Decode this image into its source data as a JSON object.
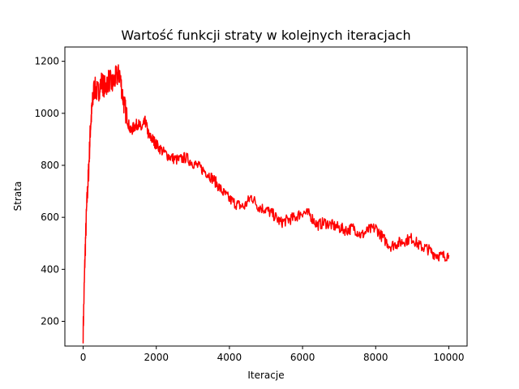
{
  "chart_data": {
    "type": "line",
    "title": "Wartość funkcji straty w kolejnych iteracjach",
    "xlabel": "Iteracje",
    "ylabel": "Strata",
    "xlim": [
      -500,
      10500
    ],
    "ylim": [
      105,
      1255
    ],
    "xticks": [
      0,
      2000,
      4000,
      6000,
      8000,
      10000
    ],
    "yticks": [
      200,
      400,
      600,
      800,
      1000,
      1200
    ],
    "grid": false,
    "legend": "none",
    "series": [
      {
        "color": "#ff0000",
        "x": [
          0,
          50,
          100,
          150,
          200,
          250,
          300,
          400,
          500,
          600,
          700,
          800,
          900,
          1000,
          1100,
          1200,
          1300,
          1400,
          1500,
          1600,
          1700,
          1800,
          1900,
          2000,
          2200,
          2400,
          2600,
          2800,
          3000,
          3200,
          3400,
          3600,
          3800,
          4000,
          4200,
          4400,
          4600,
          4800,
          5000,
          5200,
          5400,
          5600,
          5800,
          6000,
          6200,
          6400,
          6600,
          6800,
          7000,
          7200,
          7400,
          7600,
          7800,
          8000,
          8200,
          8400,
          8600,
          8800,
          9000,
          9200,
          9400,
          9600,
          9800,
          10000
        ],
        "y": [
          160,
          450,
          650,
          780,
          950,
          1030,
          1100,
          1080,
          1120,
          1100,
          1130,
          1110,
          1140,
          1150,
          1050,
          980,
          930,
          950,
          960,
          940,
          970,
          910,
          900,
          880,
          850,
          830,
          820,
          830,
          810,
          790,
          770,
          740,
          700,
          670,
          650,
          640,
          680,
          640,
          630,
          610,
          580,
          590,
          600,
          620,
          610,
          570,
          580,
          570,
          560,
          550,
          560,
          530,
          550,
          560,
          520,
          490,
          500,
          510,
          520,
          490,
          480,
          460,
          450,
          455
        ]
      }
    ]
  }
}
